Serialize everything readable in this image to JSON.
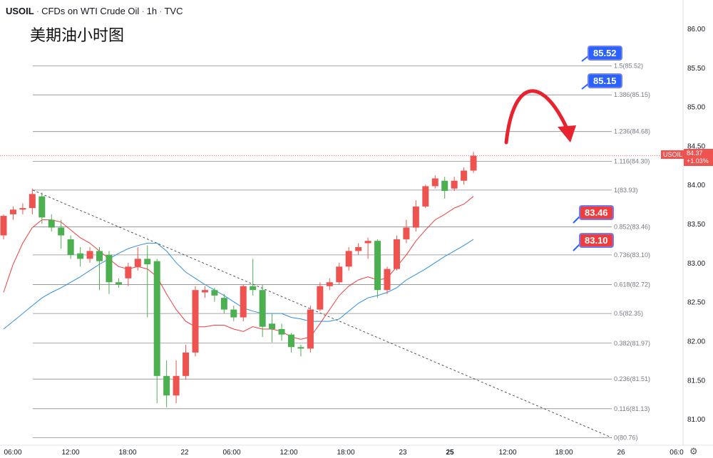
{
  "header": {
    "symbol": "USOIL",
    "description": "CFDs on WTI Crude Oil",
    "interval": "1h",
    "exchange": "TVC"
  },
  "chart_title": "美期油小时图",
  "price_tags": {
    "target_1": "85.52",
    "target_2": "85.15",
    "support_1": "83.46",
    "support_2": "83.10"
  },
  "last_price": {
    "symbol_label": "USOIL",
    "value": "84.37",
    "change": "+1.03%"
  },
  "colors": {
    "up": "#ef5350",
    "down": "#4caf50",
    "ma_fast": "#f23d3d",
    "ma_slow": "#2f8fe0",
    "fib": "#8a8a8a",
    "tag_blue": "#2962ff",
    "arrow": "#e8222e"
  },
  "icons": {
    "settings": "gear-icon",
    "forecast": "curved-arrow-icon"
  },
  "chart_data": {
    "type": "candlestick",
    "y_axis": {
      "range": [
        80.68,
        86.25
      ],
      "ticks": [
        81.0,
        81.5,
        82.0,
        82.5,
        83.0,
        83.5,
        84.0,
        84.5,
        85.0,
        85.5,
        86.0
      ],
      "tick_labels": [
        "81.00",
        "81.50",
        "82.00",
        "82.50",
        "83.00",
        "83.50",
        "84.00",
        "84.50",
        "85.00",
        "85.50",
        "86.00"
      ]
    },
    "x_axis": {
      "tick_labels": [
        "06:00",
        "12:00",
        "18:00",
        "22",
        "06:00",
        "12:00",
        "18:00",
        "23",
        "06:00",
        "12:00",
        "25",
        "12:00",
        "18:00",
        "26",
        "06:0"
      ]
    },
    "fibonacci": [
      {
        "ratio": "1.5",
        "price": 85.52
      },
      {
        "ratio": "1.386",
        "price": 85.15
      },
      {
        "ratio": "1.236",
        "price": 84.68
      },
      {
        "ratio": "1.116",
        "price": 84.3
      },
      {
        "ratio": "1",
        "price": 83.93
      },
      {
        "ratio": "0.852",
        "price": 83.46
      },
      {
        "ratio": "0.736",
        "price": 83.1
      },
      {
        "ratio": "0.618",
        "price": 82.72
      },
      {
        "ratio": "0.5",
        "price": 82.35
      },
      {
        "ratio": "0.382",
        "price": 81.97
      },
      {
        "ratio": "0.236",
        "price": 81.51
      },
      {
        "ratio": "0.116",
        "price": 81.13
      },
      {
        "ratio": "0",
        "price": 80.76
      }
    ],
    "current_price": 84.37,
    "candles": [
      [
        83.35,
        83.6,
        83.3,
        83.62
      ],
      [
        83.62,
        83.68,
        83.55,
        83.72
      ],
      [
        83.68,
        83.7,
        83.62,
        83.76
      ],
      [
        83.7,
        83.88,
        83.62,
        83.95
      ],
      [
        83.85,
        83.58,
        83.5,
        83.9
      ],
      [
        83.55,
        83.45,
        83.4,
        83.62
      ],
      [
        83.45,
        83.35,
        83.18,
        83.55
      ],
      [
        83.3,
        83.1,
        83.05,
        83.35
      ],
      [
        83.12,
        83.05,
        82.95,
        83.2
      ],
      [
        83.05,
        83.15,
        83.0,
        83.2
      ],
      [
        83.15,
        83.02,
        82.65,
        83.2
      ],
      [
        83.1,
        82.75,
        82.6,
        83.15
      ],
      [
        82.75,
        82.72,
        82.68,
        82.8
      ],
      [
        82.8,
        82.95,
        82.7,
        83.0
      ],
      [
        82.95,
        83.05,
        82.9,
        83.2
      ],
      [
        83.05,
        82.98,
        82.3,
        83.22
      ],
      [
        83.02,
        81.55,
        81.2,
        83.05
      ],
      [
        81.55,
        81.3,
        81.15,
        81.75
      ],
      [
        81.3,
        81.55,
        81.2,
        81.75
      ],
      [
        81.55,
        81.85,
        81.5,
        81.95
      ],
      [
        81.85,
        82.65,
        81.8,
        82.7
      ],
      [
        82.62,
        82.65,
        82.55,
        82.7
      ],
      [
        82.65,
        82.58,
        82.5,
        82.68
      ],
      [
        82.55,
        82.4,
        82.35,
        82.6
      ],
      [
        82.4,
        82.3,
        82.25,
        82.45
      ],
      [
        82.3,
        82.7,
        82.25,
        82.72
      ],
      [
        82.7,
        82.65,
        82.58,
        83.05
      ],
      [
        82.65,
        82.18,
        82.05,
        82.72
      ],
      [
        82.22,
        82.15,
        81.98,
        82.35
      ],
      [
        82.15,
        82.08,
        82.0,
        82.22
      ],
      [
        82.08,
        81.92,
        81.85,
        82.1
      ],
      [
        81.92,
        81.9,
        81.8,
        81.95
      ],
      [
        81.9,
        82.4,
        81.85,
        82.45
      ],
      [
        82.4,
        82.7,
        82.38,
        82.75
      ],
      [
        82.7,
        82.75,
        82.65,
        82.8
      ],
      [
        82.75,
        82.95,
        82.72,
        83.0
      ],
      [
        82.95,
        83.15,
        82.9,
        83.2
      ],
      [
        83.15,
        83.2,
        83.1,
        83.25
      ],
      [
        83.25,
        83.28,
        83.05,
        83.32
      ],
      [
        83.28,
        82.65,
        82.55,
        83.3
      ],
      [
        82.65,
        82.92,
        82.6,
        82.95
      ],
      [
        82.92,
        83.3,
        82.9,
        83.35
      ],
      [
        83.3,
        83.45,
        83.25,
        83.55
      ],
      [
        83.45,
        83.72,
        83.4,
        83.8
      ],
      [
        83.72,
        83.98,
        83.7,
        84.0
      ],
      [
        83.98,
        84.08,
        83.95,
        84.12
      ],
      [
        84.05,
        83.92,
        83.82,
        84.1
      ],
      [
        83.95,
        84.05,
        83.92,
        84.1
      ],
      [
        84.05,
        84.18,
        84.0,
        84.22
      ],
      [
        84.18,
        84.37,
        84.15,
        84.42
      ]
    ],
    "ma_fast_values": [
      82.62,
      82.98,
      83.25,
      83.45,
      83.55,
      83.55,
      83.52,
      83.42,
      83.32,
      83.25,
      83.15,
      83.05,
      82.95,
      82.92,
      82.95,
      82.92,
      82.82,
      82.6,
      82.4,
      82.25,
      82.18,
      82.18,
      82.2,
      82.2,
      82.15,
      82.12,
      82.18,
      82.15,
      82.15,
      82.12,
      82.05,
      82.02,
      82.05,
      82.22,
      82.4,
      82.58,
      82.7,
      82.78,
      82.82,
      82.78,
      82.8,
      82.95,
      83.1,
      83.28,
      83.42,
      83.55,
      83.62,
      83.7,
      83.75,
      83.85
    ],
    "ma_slow_values": [
      82.15,
      82.25,
      82.35,
      82.45,
      82.55,
      82.62,
      82.68,
      82.75,
      82.82,
      82.9,
      82.98,
      83.05,
      83.12,
      83.18,
      83.22,
      83.25,
      83.25,
      83.15,
      83.0,
      82.88,
      82.8,
      82.72,
      82.65,
      82.58,
      82.5,
      82.42,
      82.38,
      82.35,
      82.35,
      82.35,
      82.3,
      82.28,
      82.25,
      82.25,
      82.25,
      82.28,
      82.38,
      82.48,
      82.55,
      82.58,
      82.62,
      82.68,
      82.78,
      82.85,
      82.92,
      83.0,
      83.08,
      83.15,
      83.22,
      83.3
    ]
  }
}
